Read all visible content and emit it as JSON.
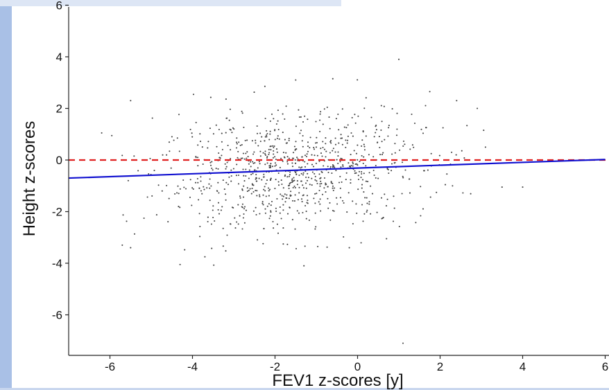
{
  "chart_data": {
    "type": "scatter",
    "title": "",
    "xlabel": "FEV1 z-scores [y]",
    "ylabel": "Height z-scores",
    "xlim": [
      -7,
      6
    ],
    "ylim": [
      -7.5,
      6
    ],
    "x_ticks": [
      -6,
      -4,
      -2,
      0,
      2,
      4,
      6
    ],
    "y_ticks": [
      6,
      4,
      2,
      0,
      -2,
      -4,
      -6
    ],
    "x_tick_labels": [
      "-6",
      "-4",
      "-2",
      "0",
      "2",
      "4",
      "6"
    ],
    "y_tick_labels": [
      "6",
      "4",
      "2",
      "0",
      "-2",
      "-4",
      "-6"
    ],
    "reference_line": {
      "y": 0,
      "style": "dashed",
      "color": "#e02020"
    },
    "fit_line": {
      "x": [
        -7,
        6
      ],
      "y": [
        -0.7,
        0.02
      ],
      "color": "#1010d0"
    },
    "point_color": "#444444",
    "grid": false,
    "points": {
      "count": 900,
      "center": [
        -1.6,
        -0.45
      ],
      "sd": [
        1.6,
        1.15
      ],
      "correlation": 0.15
    },
    "outliers": [
      [
        1.1,
        -7.1
      ],
      [
        1.0,
        3.9
      ],
      [
        -1.5,
        3.1
      ],
      [
        -0.6,
        3.15
      ],
      [
        -4.3,
        -4.05
      ],
      [
        -1.3,
        -4.1
      ],
      [
        -5.7,
        -3.3
      ],
      [
        -5.5,
        -3.4
      ],
      [
        -6.2,
        1.05
      ],
      [
        -5.5,
        2.3
      ],
      [
        3.5,
        -1.05
      ],
      [
        4.0,
        -1.05
      ],
      [
        2.9,
        2.0
      ],
      [
        2.4,
        2.3
      ],
      [
        1.75,
        2.65
      ],
      [
        -0.2,
        -3.4
      ],
      [
        0.7,
        -3.05
      ],
      [
        -3.7,
        -3.75
      ],
      [
        2.3,
        -1.0
      ],
      [
        3.1,
        0.5
      ]
    ]
  }
}
